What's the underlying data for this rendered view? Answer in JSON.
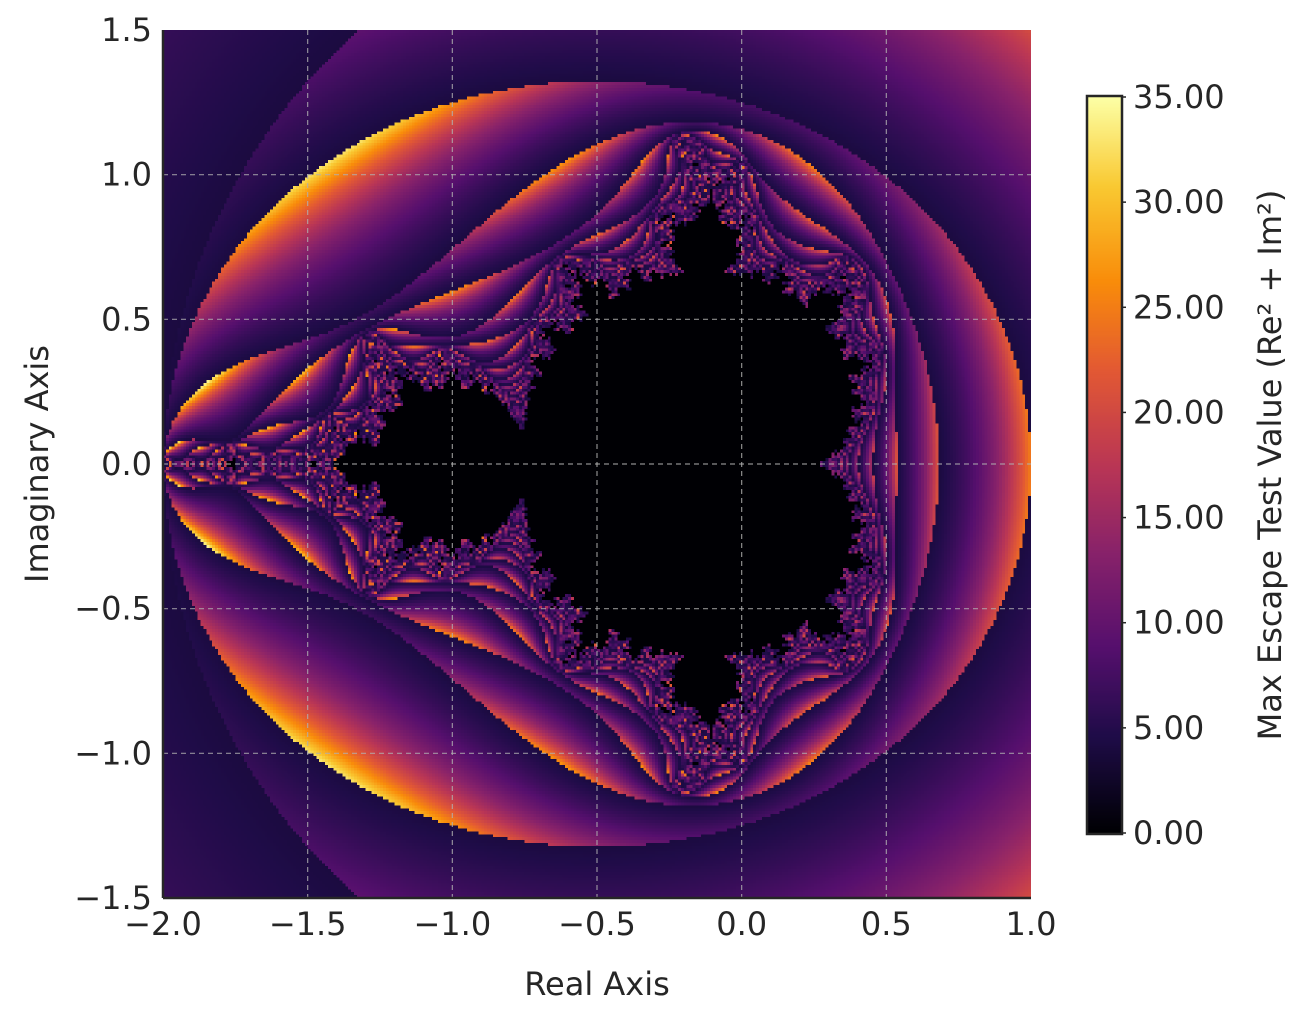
{
  "chart_data": {
    "type": "heatmap",
    "description_of_data": "Mandelbrot escape map",
    "xlabel": "Real Axis",
    "ylabel": "Imaginary Axis",
    "xlim": [
      -2.0,
      1.0
    ],
    "ylim": [
      -1.5,
      1.5
    ],
    "xticks": [
      -2.0,
      -1.5,
      -1.0,
      -0.5,
      0.0,
      0.5,
      1.0
    ],
    "xtick_labels": [
      "−2.0",
      "−1.5",
      "−1.0",
      "−0.5",
      "0.0",
      "0.5",
      "1.0"
    ],
    "yticks": [
      -1.5,
      -1.0,
      -0.5,
      0.0,
      0.5,
      1.0,
      1.5
    ],
    "ytick_labels": [
      "−1.5",
      "−1.0",
      "−0.5",
      "0.0",
      "0.5",
      "1.0",
      "1.5"
    ],
    "grid": true,
    "colormap": "inferno",
    "colorbar": {
      "label": "Max Escape Test Value (Re² + Im²)",
      "range": [
        0,
        35
      ],
      "ticks": [
        0,
        5,
        10,
        15,
        20,
        25,
        30,
        35
      ],
      "tick_labels": [
        "0.00",
        "5.00",
        "10.00",
        "15.00",
        "20.00",
        "25.00",
        "30.00",
        "35.00"
      ]
    },
    "fractal": {
      "max_iter": 25,
      "escape_radius_sq": 4,
      "resolution": 300
    }
  }
}
